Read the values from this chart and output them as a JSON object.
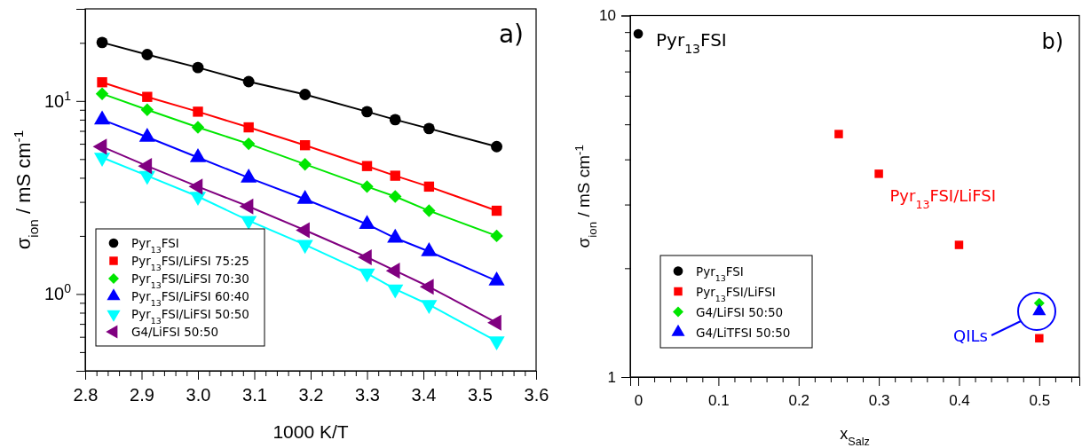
{
  "chart_data": [
    {
      "type": "line",
      "xlabel": "1000 K/T",
      "ylabel": "σ$_{ion}$ / mS cm$^{-1}$",
      "annotations": [
        "a)"
      ],
      "x": [
        2.83,
        2.91,
        3.0,
        3.09,
        3.19,
        3.3,
        3.35,
        3.41,
        3.53
      ],
      "series": [
        {
          "name": "Pyr$_{13}$FSI",
          "color": "#000000",
          "marker": "circle",
          "values": [
            20.1,
            17.4,
            14.9,
            12.6,
            10.8,
            8.8,
            8.0,
            7.2,
            5.8
          ]
        },
        {
          "name": "Pyr$_{13}$FSI/LiFSI 75:25",
          "color": "#ff0000",
          "marker": "square",
          "values": [
            12.5,
            10.5,
            8.8,
            7.3,
            5.9,
            4.6,
            4.1,
            3.6,
            2.7
          ]
        },
        {
          "name": "Pyr$_{13}$FSI/LiFSI 70:30",
          "color": "#00e600",
          "marker": "diamond",
          "values": [
            10.9,
            9.0,
            7.3,
            6.0,
            4.7,
            3.6,
            3.2,
            2.7,
            2.0
          ]
        },
        {
          "name": "Pyr$_{13}$FSI/LiFSI 60:40",
          "color": "#0000ff",
          "marker": "triangle",
          "values": [
            8.0,
            6.5,
            5.1,
            4.0,
            3.1,
            2.3,
            1.95,
            1.66,
            1.17
          ]
        },
        {
          "name": "Pyr$_{13}$FSI/LiFSI 50:50",
          "color": "#00ffff",
          "marker": "triangle-down",
          "values": [
            5.1,
            4.1,
            3.2,
            2.4,
            1.8,
            1.28,
            1.06,
            0.88,
            0.57
          ]
        },
        {
          "name": "G4/LiFSI 50:50",
          "color": "#800080",
          "marker": "triangle-left",
          "values": [
            5.8,
            4.6,
            3.6,
            2.84,
            2.14,
            1.55,
            1.32,
            1.09,
            0.71
          ]
        }
      ],
      "xlim": [
        2.8,
        3.6
      ],
      "xticks": [
        {
          "value": 2.8,
          "label": "2.8"
        },
        {
          "value": 2.82,
          "label": null
        },
        {
          "value": 2.84,
          "label": null
        },
        {
          "value": 2.86,
          "label": null
        },
        {
          "value": 2.88,
          "label": null
        },
        {
          "value": 2.9,
          "label": "2.9"
        },
        {
          "value": 2.92,
          "label": null
        },
        {
          "value": 2.94,
          "label": null
        },
        {
          "value": 2.96,
          "label": null
        },
        {
          "value": 2.98,
          "label": null
        },
        {
          "value": 3.0,
          "label": "3.0"
        },
        {
          "value": 3.02,
          "label": null
        },
        {
          "value": 3.04,
          "label": null
        },
        {
          "value": 3.06,
          "label": null
        },
        {
          "value": 3.08,
          "label": null
        },
        {
          "value": 3.1,
          "label": "3.1"
        },
        {
          "value": 3.12,
          "label": null
        },
        {
          "value": 3.14,
          "label": null
        },
        {
          "value": 3.16,
          "label": null
        },
        {
          "value": 3.18,
          "label": null
        },
        {
          "value": 3.2,
          "label": "3.2"
        },
        {
          "value": 3.22,
          "label": null
        },
        {
          "value": 3.24,
          "label": null
        },
        {
          "value": 3.26,
          "label": null
        },
        {
          "value": 3.28,
          "label": null
        },
        {
          "value": 3.3,
          "label": "3.3"
        },
        {
          "value": 3.32,
          "label": null
        },
        {
          "value": 3.34,
          "label": null
        },
        {
          "value": 3.36,
          "label": null
        },
        {
          "value": 3.38,
          "label": null
        },
        {
          "value": 3.4,
          "label": "3.4"
        },
        {
          "value": 3.42,
          "label": null
        },
        {
          "value": 3.44,
          "label": null
        },
        {
          "value": 3.46,
          "label": null
        },
        {
          "value": 3.48,
          "label": null
        },
        {
          "value": 3.5,
          "label": "3.5"
        },
        {
          "value": 3.52,
          "label": null
        },
        {
          "value": 3.54,
          "label": null
        },
        {
          "value": 3.56,
          "label": null
        },
        {
          "value": 3.58,
          "label": null
        },
        {
          "value": 3.6,
          "label": "3.6"
        }
      ],
      "ylim": [
        0.4,
        30
      ],
      "log": "y",
      "yticks": [
        {
          "value": 0.4,
          "label": null
        },
        {
          "value": 0.5,
          "label": null
        },
        {
          "value": 0.6,
          "label": null
        },
        {
          "value": 0.7,
          "label": null
        },
        {
          "value": 0.8,
          "label": null
        },
        {
          "value": 0.9,
          "label": null
        },
        {
          "value": 1,
          "label": "10$^{0}$"
        },
        {
          "value": 2,
          "label": null
        },
        {
          "value": 3,
          "label": null
        },
        {
          "value": 4,
          "label": null
        },
        {
          "value": 5,
          "label": null
        },
        {
          "value": 6,
          "label": null
        },
        {
          "value": 7,
          "label": null
        },
        {
          "value": 8,
          "label": null
        },
        {
          "value": 9,
          "label": null
        },
        {
          "value": 10,
          "label": "10$^{1}$"
        },
        {
          "value": 20,
          "label": null
        },
        {
          "value": 30,
          "label": null
        }
      ],
      "legend": "bottom left",
      "grid": false
    },
    {
      "type": "scatter",
      "xlabel": "x$_{Salz}$",
      "ylabel": "σ$_{ion}$ / mS cm$^{-1}$",
      "annotations": [
        "b)",
        {
          "text": "Pyr$_{13}$FSI",
          "x": 0,
          "y": 8.9
        },
        {
          "text": "Pyr$_{13}$FSI/LiFSI",
          "x": 0.4,
          "y": 2.32
        },
        "QILs"
      ],
      "series": [
        {
          "name": "Pyr$_{13}$FSI",
          "color": "#000000",
          "marker": "circle",
          "x": [
            0
          ],
          "values": [
            8.9
          ]
        },
        {
          "name": "Pyr$_{13}$FSI/LiFSI",
          "color": "#ff0000",
          "marker": "square",
          "x": [
            0.25,
            0.3,
            0.4,
            0.5
          ],
          "values": [
            4.7,
            3.65,
            2.32,
            1.28
          ]
        },
        {
          "name": "G4/LiFSI 50:50",
          "color": "#00e600",
          "marker": "diamond",
          "x": [
            0.5
          ],
          "values": [
            1.6
          ]
        },
        {
          "name": "G4/LiTFSI 50:50",
          "color": "#0000ff",
          "marker": "triangle",
          "x": [
            0.5
          ],
          "values": [
            1.52
          ]
        }
      ],
      "xlim": [
        -0.01,
        0.55
      ],
      "xticks": [
        {
          "value": 0,
          "label": "0"
        },
        {
          "value": 0.02,
          "label": null
        },
        {
          "value": 0.04,
          "label": null
        },
        {
          "value": 0.06,
          "label": null
        },
        {
          "value": 0.08,
          "label": null
        },
        {
          "value": 0.1,
          "label": "0.1"
        },
        {
          "value": 0.12,
          "label": null
        },
        {
          "value": 0.14,
          "label": null
        },
        {
          "value": 0.16,
          "label": null
        },
        {
          "value": 0.18,
          "label": null
        },
        {
          "value": 0.2,
          "label": "0.2"
        },
        {
          "value": 0.22,
          "label": null
        },
        {
          "value": 0.24,
          "label": null
        },
        {
          "value": 0.26,
          "label": null
        },
        {
          "value": 0.28,
          "label": null
        },
        {
          "value": 0.3,
          "label": "0.3"
        },
        {
          "value": 0.32,
          "label": null
        },
        {
          "value": 0.34,
          "label": null
        },
        {
          "value": 0.36,
          "label": null
        },
        {
          "value": 0.38,
          "label": null
        },
        {
          "value": 0.4,
          "label": "0.4"
        },
        {
          "value": 0.42,
          "label": null
        },
        {
          "value": 0.44,
          "label": null
        },
        {
          "value": 0.46,
          "label": null
        },
        {
          "value": 0.48,
          "label": null
        },
        {
          "value": 0.5,
          "label": "0.5"
        },
        {
          "value": 0.52,
          "label": null
        },
        {
          "value": 0.54,
          "label": null
        }
      ],
      "ylim": [
        1,
        10
      ],
      "log": "y",
      "yticks": [
        {
          "value": 1,
          "label": "1"
        },
        {
          "value": 2,
          "label": null
        },
        {
          "value": 3,
          "label": null
        },
        {
          "value": 4,
          "label": null
        },
        {
          "value": 5,
          "label": null
        },
        {
          "value": 6,
          "label": null
        },
        {
          "value": 7,
          "label": null
        },
        {
          "value": 8,
          "label": null
        },
        {
          "value": 9,
          "label": null
        },
        {
          "value": 10,
          "label": "10"
        }
      ],
      "legend": "bottom left",
      "grid": false
    }
  ]
}
